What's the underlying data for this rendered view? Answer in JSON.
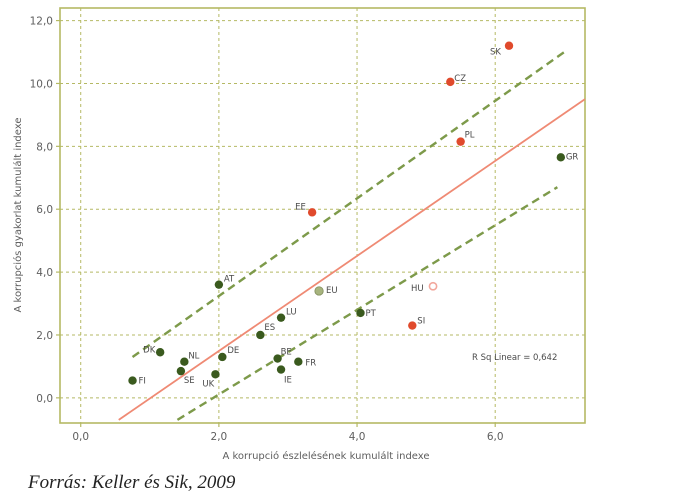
{
  "chart_data": {
    "type": "scatter",
    "xlabel": "A korrupció észlelésének kumulált indexe",
    "ylabel": "A korrupciós gyakorlat kumulált indexe",
    "xlim": [
      -0.3,
      7.3
    ],
    "ylim": [
      -0.8,
      12.4
    ],
    "x_ticks": [
      0,
      2,
      4,
      6
    ],
    "x_tick_labels": [
      "0,0",
      "2,0",
      "4,0",
      "6,0"
    ],
    "y_ticks": [
      0,
      2,
      4,
      6,
      8,
      10,
      12
    ],
    "y_tick_labels": [
      "0,0",
      "2,0",
      "4,0",
      "6,0",
      "8,0",
      "10,0",
      "12,0"
    ],
    "grid": true,
    "points": [
      {
        "label": "FI",
        "x": 0.75,
        "y": 0.55,
        "group": "green"
      },
      {
        "label": "DK",
        "x": 1.15,
        "y": 1.45,
        "group": "green"
      },
      {
        "label": "NL",
        "x": 1.5,
        "y": 1.15,
        "group": "green"
      },
      {
        "label": "SE",
        "x": 1.45,
        "y": 0.85,
        "group": "green"
      },
      {
        "label": "UK",
        "x": 1.95,
        "y": 0.75,
        "group": "green"
      },
      {
        "label": "DE",
        "x": 2.05,
        "y": 1.3,
        "group": "green"
      },
      {
        "label": "AT",
        "x": 2.0,
        "y": 3.6,
        "group": "green"
      },
      {
        "label": "ES",
        "x": 2.6,
        "y": 2.0,
        "group": "green"
      },
      {
        "label": "LU",
        "x": 2.9,
        "y": 2.55,
        "group": "green"
      },
      {
        "label": "BE",
        "x": 2.85,
        "y": 1.25,
        "group": "green"
      },
      {
        "label": "IE",
        "x": 2.9,
        "y": 0.9,
        "group": "green"
      },
      {
        "label": "FR",
        "x": 3.15,
        "y": 1.15,
        "group": "green"
      },
      {
        "label": "EU",
        "x": 3.45,
        "y": 3.4,
        "group": "light"
      },
      {
        "label": "PT",
        "x": 4.05,
        "y": 2.7,
        "group": "green"
      },
      {
        "label": "GR",
        "x": 6.95,
        "y": 7.65,
        "group": "green"
      },
      {
        "label": "EE",
        "x": 3.35,
        "y": 5.9,
        "group": "red"
      },
      {
        "label": "CZ",
        "x": 5.35,
        "y": 10.05,
        "group": "red"
      },
      {
        "label": "SK",
        "x": 6.2,
        "y": 11.2,
        "group": "red"
      },
      {
        "label": "PL",
        "x": 5.5,
        "y": 8.15,
        "group": "red"
      },
      {
        "label": "SI",
        "x": 4.8,
        "y": 2.3,
        "group": "red"
      },
      {
        "label": "HU",
        "x": 5.1,
        "y": 3.55,
        "group": "hollow-red"
      }
    ],
    "fit_line": {
      "x": [
        0.55,
        7.3
      ],
      "y": [
        -0.7,
        9.5
      ]
    },
    "upper_band": {
      "x": [
        0.75,
        7.0
      ],
      "y": [
        1.3,
        11.0
      ]
    },
    "lower_band": {
      "x": [
        1.4,
        6.9
      ],
      "y": [
        -0.7,
        6.7
      ]
    },
    "annotation": "R Sq Linear = 0,642"
  },
  "caption": "Forrás: Keller és Sik, 2009",
  "colors": {
    "frame": "#b5b964",
    "grid": "#b5b964",
    "green_point": "#3a5a1e",
    "light_point": "#a7b47e",
    "red_point": "#e04a2c",
    "fit_line": "#ef8a74",
    "band": "#7d9a4a",
    "hollow_red": "#f2a79c"
  }
}
